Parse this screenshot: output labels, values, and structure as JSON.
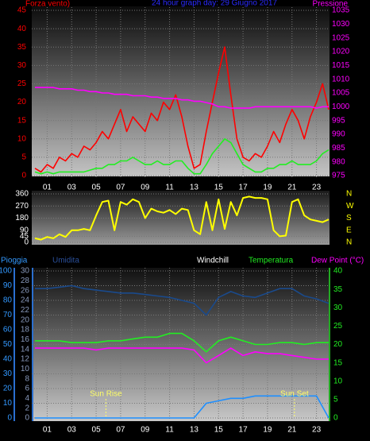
{
  "chart_data": [
    {
      "type": "line",
      "title": "24 hour graph day:   29 Giugno 2017",
      "y_label": "Forza vento)",
      "y2_label": "Pressione",
      "x": [
        0,
        0.5,
        1,
        1.5,
        2,
        2.5,
        3,
        3.5,
        4,
        4.5,
        5,
        5.5,
        6,
        6.5,
        7,
        7.5,
        8,
        8.5,
        9,
        9.5,
        10,
        10.5,
        11,
        11.5,
        12,
        12.5,
        13,
        13.5,
        14,
        14.5,
        15,
        15.5,
        16,
        16.5,
        17,
        17.5,
        18,
        18.5,
        19,
        19.5,
        20,
        20.5,
        21,
        21.5,
        22,
        22.5,
        23,
        23.5,
        24
      ],
      "xlim": [
        0,
        24
      ],
      "xticks": [
        {
          "value": 1,
          "label": "01"
        },
        {
          "value": 3,
          "label": "03"
        },
        {
          "value": 5,
          "label": "05"
        },
        {
          "value": 7,
          "label": "07"
        },
        {
          "value": 9,
          "label": "09"
        },
        {
          "value": 11,
          "label": "11"
        },
        {
          "value": 13,
          "label": "13"
        },
        {
          "value": 15,
          "label": "15"
        },
        {
          "value": 17,
          "label": "17"
        },
        {
          "value": 19,
          "label": "19"
        },
        {
          "value": 21,
          "label": "21"
        },
        {
          "value": 23,
          "label": "23"
        }
      ],
      "ylim": [
        0,
        45
      ],
      "yticks": [
        0,
        5,
        10,
        15,
        20,
        25,
        30,
        35,
        40,
        45
      ],
      "y2lim": [
        975,
        1035
      ],
      "y2ticks": [
        975,
        980,
        985,
        990,
        995,
        1000,
        1005,
        1010,
        1015,
        1020,
        1025,
        1030,
        1035
      ],
      "grid": true,
      "series": [
        {
          "color": "#ff0000",
          "values": [
            2,
            1,
            3,
            2,
            5,
            4,
            6,
            5,
            8,
            7,
            9,
            12,
            10,
            14,
            18,
            12,
            16,
            14,
            12,
            17,
            15,
            20,
            18,
            22,
            16,
            8,
            2,
            3,
            12,
            20,
            28,
            35,
            22,
            10,
            5,
            4,
            6,
            5,
            8,
            12,
            9,
            14,
            18,
            15,
            10,
            16,
            20,
            25,
            18
          ]
        },
        {
          "color": "#22ee22",
          "values": [
            1,
            0.5,
            1,
            0.5,
            1,
            1,
            1,
            1,
            1,
            1.5,
            2,
            2,
            3,
            3,
            4,
            4,
            5,
            4,
            3,
            3,
            4,
            3,
            3,
            4,
            4,
            2,
            0.5,
            0.5,
            3,
            6,
            8,
            10,
            9,
            6,
            3,
            2,
            1,
            1,
            2,
            2,
            3,
            3,
            4,
            3,
            3,
            3,
            4,
            6,
            7
          ]
        },
        {
          "color": "#ff00ff",
          "axis": "y2",
          "values": [
            1007,
            1007,
            1007,
            1007,
            1006.5,
            1006.5,
            1006.5,
            1006,
            1006,
            1005.5,
            1005.5,
            1005,
            1005,
            1004.5,
            1004.5,
            1004.5,
            1004,
            1004,
            1004,
            1003.5,
            1003.5,
            1003,
            1003,
            1003,
            1002.5,
            1002.5,
            1002,
            1002,
            1001.5,
            1001,
            1000,
            1000,
            999.5,
            999.5,
            999.5,
            999.5,
            1000,
            1000,
            1000,
            1000,
            1000,
            1000,
            1000,
            1000,
            1000,
            1000,
            999.5,
            1000,
            1000
          ]
        }
      ]
    },
    {
      "type": "line",
      "x": [
        0,
        0.5,
        1,
        1.5,
        2,
        2.5,
        3,
        3.5,
        4,
        4.5,
        5,
        5.5,
        6,
        6.5,
        7,
        7.5,
        8,
        8.5,
        9,
        9.5,
        10,
        10.5,
        11,
        11.5,
        12,
        12.5,
        13,
        13.5,
        14,
        14.5,
        15,
        15.5,
        16,
        16.5,
        17,
        17.5,
        18,
        18.5,
        19,
        19.5,
        20,
        20.5,
        21,
        21.5,
        22,
        22.5,
        23,
        23.5,
        24
      ],
      "xlim": [
        0,
        24
      ],
      "ylim": [
        0,
        360
      ],
      "yticks": [
        0,
        45,
        90,
        180,
        270,
        360
      ],
      "y2lim": [
        0,
        360
      ],
      "y2ticks": [
        {
          "value": 0,
          "label": "N"
        },
        {
          "value": 90,
          "label": "E"
        },
        {
          "value": 180,
          "label": "S"
        },
        {
          "value": 270,
          "label": "W"
        },
        {
          "value": 360,
          "label": "N"
        }
      ],
      "grid": true,
      "series": [
        {
          "color": "#ffff00",
          "values": [
            30,
            20,
            40,
            30,
            60,
            40,
            90,
            90,
            100,
            90,
            200,
            300,
            310,
            90,
            300,
            280,
            320,
            300,
            180,
            250,
            230,
            220,
            240,
            210,
            250,
            240,
            90,
            60,
            300,
            90,
            320,
            100,
            300,
            200,
            330,
            340,
            330,
            330,
            320,
            90,
            45,
            50,
            300,
            320,
            200,
            170,
            160,
            150,
            170
          ]
        }
      ]
    },
    {
      "type": "line",
      "y_label": "Pioggia",
      "y3_label": "Umidita",
      "windchill_label": "Windchill",
      "y2_label_note": "Dew Point (°C)",
      "x": [
        0,
        1,
        2,
        3,
        4,
        5,
        6,
        7,
        8,
        9,
        10,
        11,
        12,
        13,
        14,
        15,
        16,
        17,
        18,
        19,
        20,
        21,
        22,
        23,
        24
      ],
      "xlim": [
        0,
        24
      ],
      "xticks": [
        {
          "value": 1,
          "label": "01"
        },
        {
          "value": 3,
          "label": "03"
        },
        {
          "value": 5,
          "label": "05"
        },
        {
          "value": 7,
          "label": "07"
        },
        {
          "value": 9,
          "label": "09"
        },
        {
          "value": 11,
          "label": "11"
        },
        {
          "value": 13,
          "label": "13"
        },
        {
          "value": 15,
          "label": "15"
        },
        {
          "value": 17,
          "label": "17"
        },
        {
          "value": 19,
          "label": "19"
        },
        {
          "value": 21,
          "label": "21"
        },
        {
          "value": 23,
          "label": "23"
        }
      ],
      "ylim": [
        0,
        100
      ],
      "yticks": [
        0,
        10,
        20,
        30,
        40,
        50,
        60,
        70,
        80,
        90,
        100
      ],
      "y3lim": [
        0,
        30
      ],
      "y3ticks": [
        0,
        2,
        4,
        6,
        8,
        10,
        12,
        14,
        16,
        18,
        20,
        22,
        24,
        26,
        28,
        30
      ],
      "y2lim": [
        0,
        40
      ],
      "y2ticks": [
        0,
        5,
        10,
        15,
        20,
        25,
        30,
        35,
        40
      ],
      "grid": true,
      "series": [
        {
          "color": "#1a4a8c",
          "values": [
            88,
            88,
            89,
            90,
            88,
            87,
            86,
            85,
            85,
            84,
            83,
            82,
            80,
            78,
            70,
            82,
            86,
            83,
            82,
            85,
            88,
            88,
            83,
            81,
            78
          ]
        },
        {
          "name": "Temperatura",
          "color": "#22ee22",
          "axis": "y2",
          "values": [
            21,
            21,
            21,
            20.5,
            20.5,
            20.5,
            21,
            21,
            21.5,
            22,
            22,
            23,
            23,
            21,
            18,
            21,
            22,
            21,
            20,
            20,
            20.5,
            20.5,
            20,
            20.5,
            20.5
          ]
        },
        {
          "name": "Dew Point (°C)",
          "color": "#ff00ff",
          "axis": "y2",
          "values": [
            19,
            19,
            19,
            19,
            19,
            18.5,
            19,
            19,
            19,
            19,
            19,
            19,
            19,
            18.5,
            15,
            17,
            19,
            17,
            18,
            17.5,
            17.5,
            17,
            16.5,
            16,
            16
          ]
        },
        {
          "color": "#1e8fff",
          "axis": "y3",
          "values": [
            0,
            0,
            0,
            0,
            0,
            0,
            0,
            0,
            0,
            0,
            0,
            0,
            0,
            0,
            3,
            3.5,
            4,
            4,
            4.5,
            4.5,
            4.5,
            4.5,
            4.5,
            4.5,
            0
          ]
        }
      ],
      "annotations": [
        {
          "text": "Sun Rise",
          "x": 5.8
        },
        {
          "text": "Sun Set",
          "x": 21.2
        }
      ]
    }
  ]
}
